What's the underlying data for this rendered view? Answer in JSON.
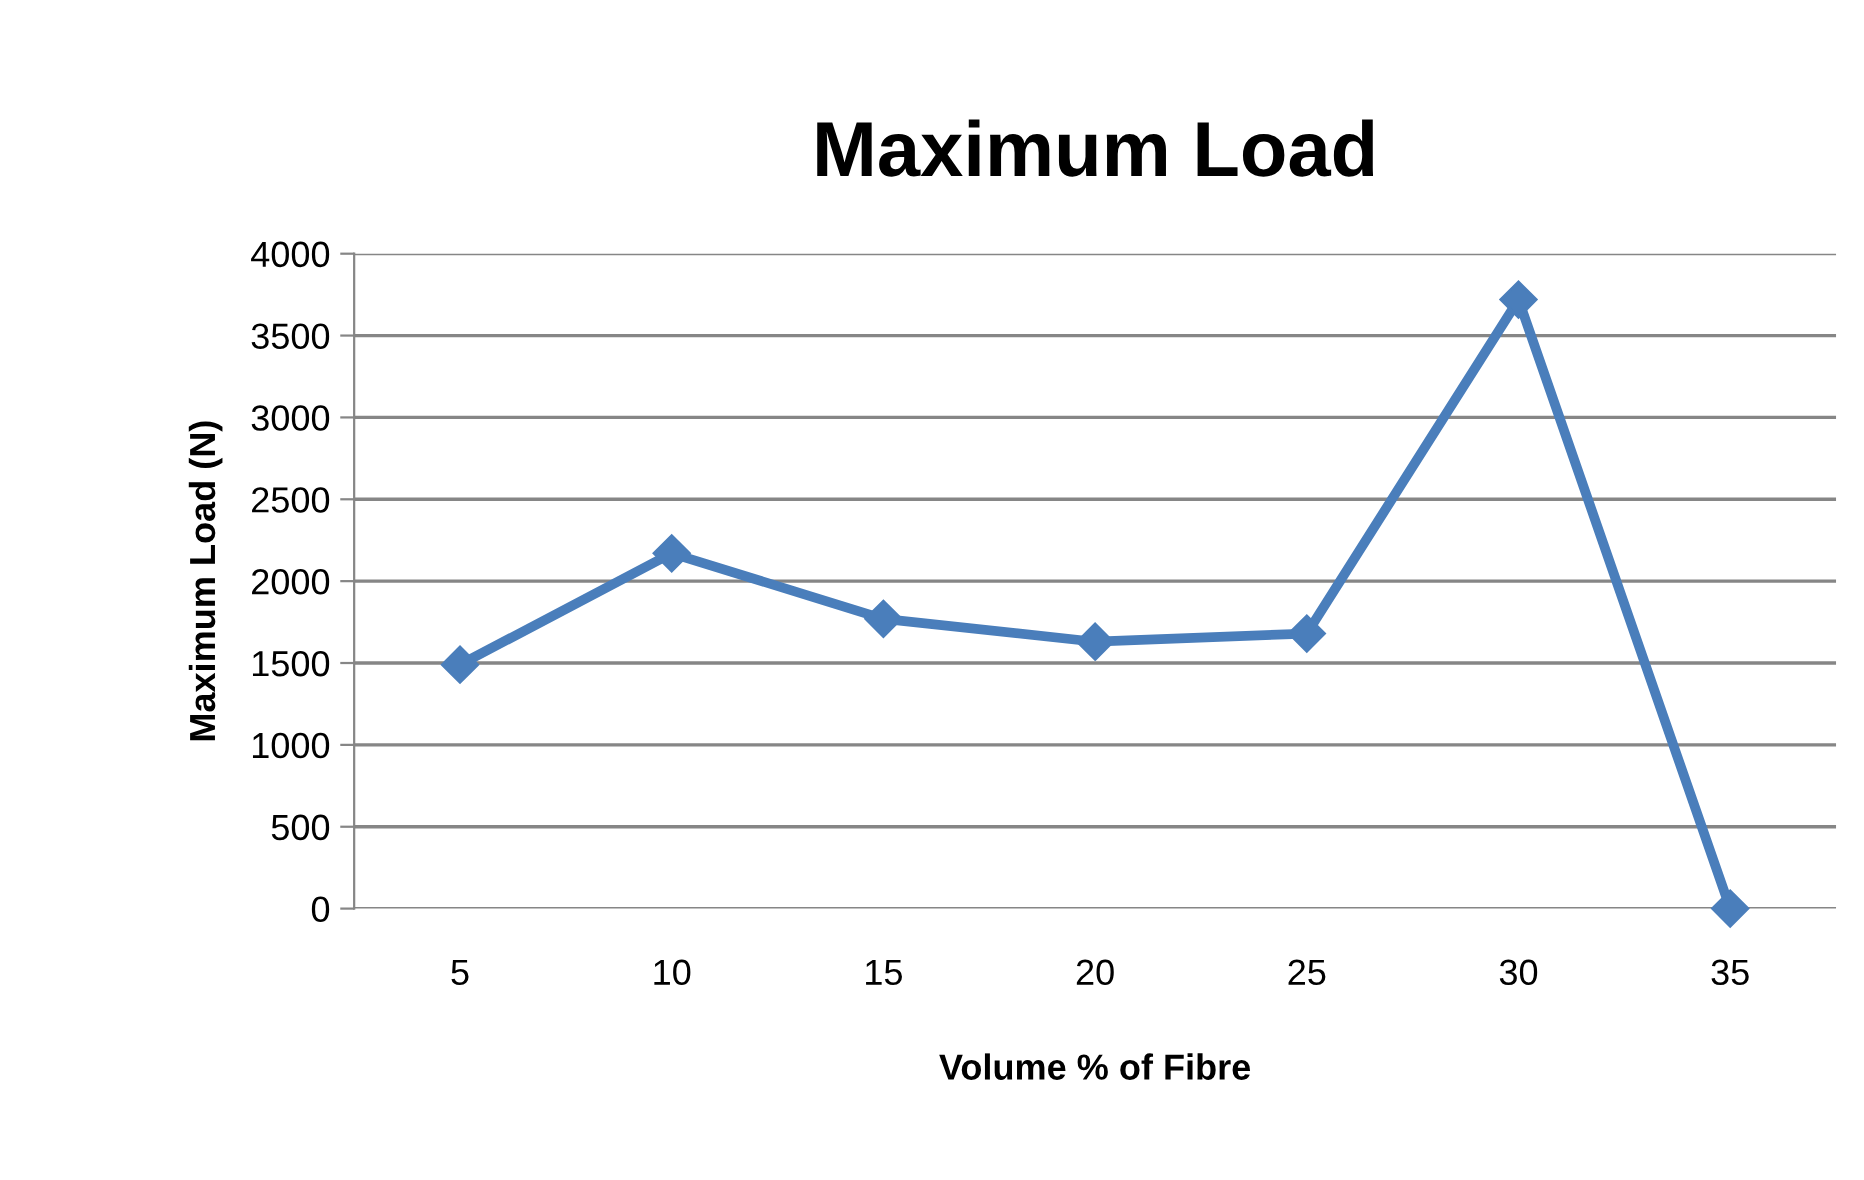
{
  "chart_data": {
    "type": "line",
    "title": "Maximum Load",
    "xlabel": "Volume % of Fibre",
    "ylabel": "Maximum Load (N)",
    "categories": [
      "5",
      "10",
      "15",
      "20",
      "25",
      "30",
      "35"
    ],
    "series": [
      {
        "color": "#4a7ebb",
        "values": [
          1490,
          2170,
          1770,
          1630,
          1680,
          3720,
          0
        ]
      }
    ],
    "ylim": [
      0,
      4000
    ],
    "yticks": [
      0,
      500,
      1000,
      1500,
      2000,
      2500,
      3000,
      3500,
      4000
    ],
    "grid": "y",
    "marker": "diamond",
    "line_style": "solid"
  }
}
